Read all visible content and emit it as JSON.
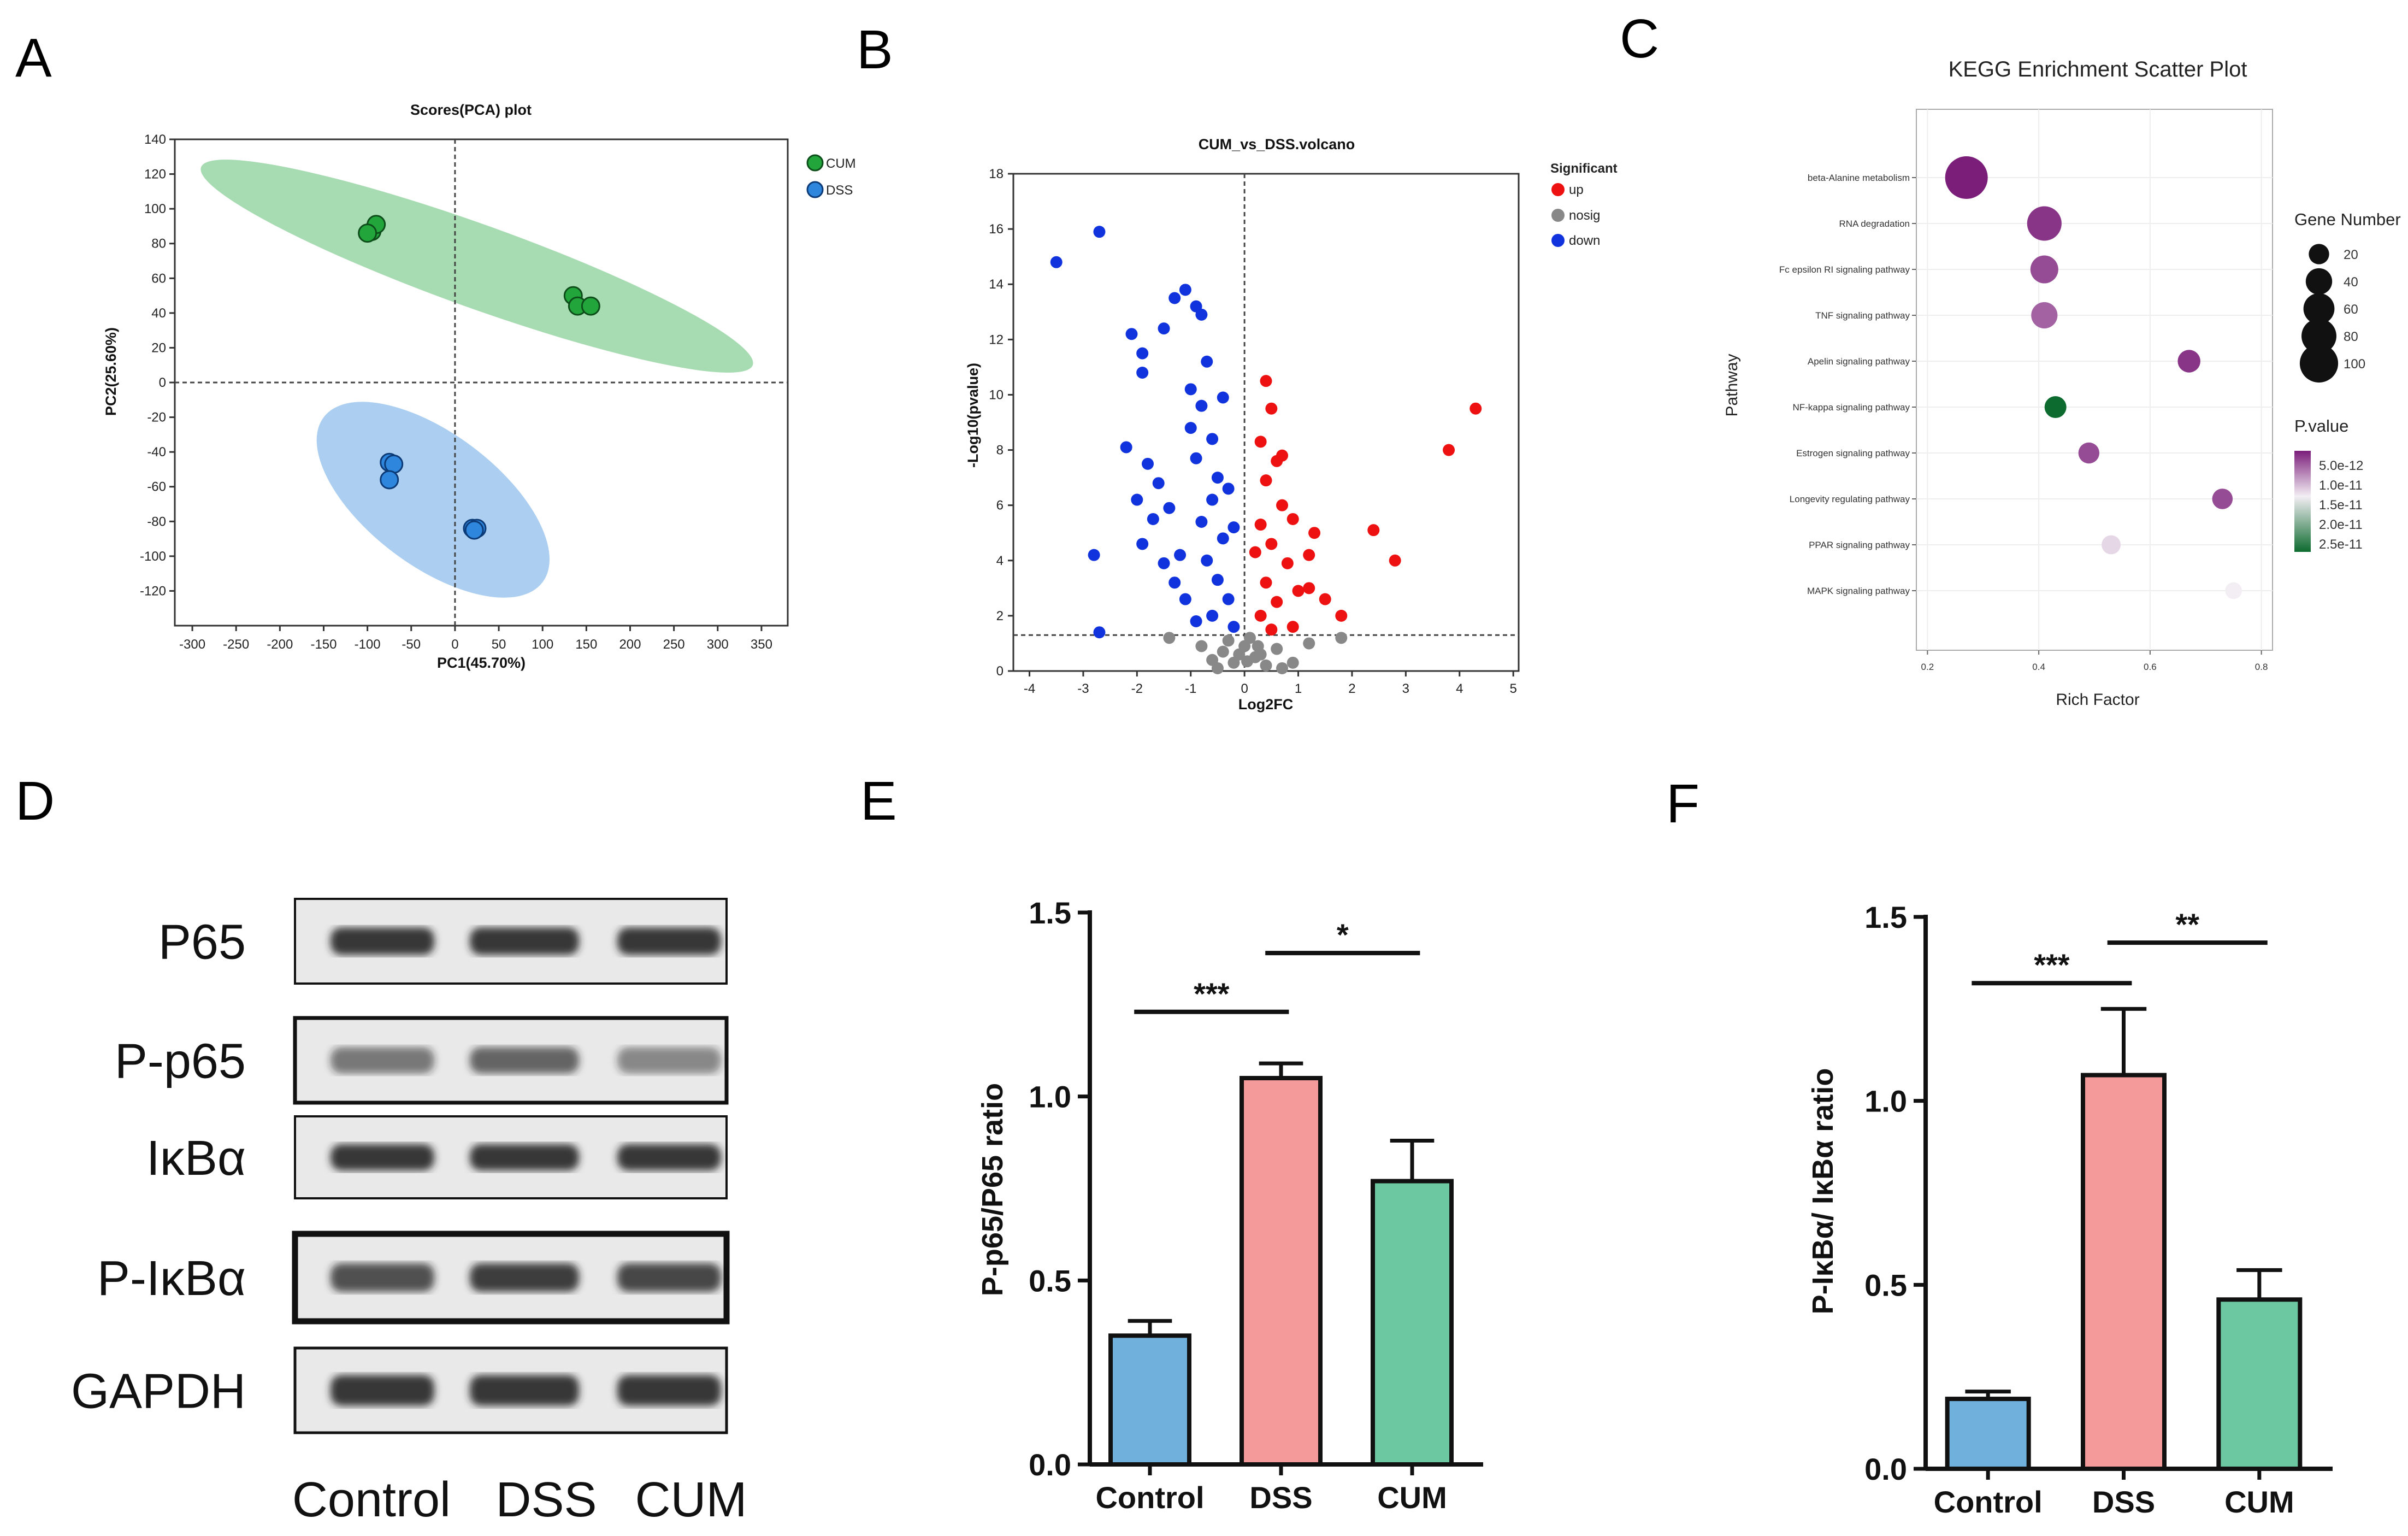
{
  "panels": {
    "A": "A",
    "B": "B",
    "C": "C",
    "D": "D",
    "E": "E",
    "F": "F"
  },
  "chart_data": [
    {
      "id": "A",
      "type": "scatter",
      "title": "Scores(PCA) plot",
      "xlabel": "PC1(45.70%)",
      "ylabel": "PC2(25.60%)",
      "xlim": [
        -320,
        380
      ],
      "ylim": [
        -140,
        140
      ],
      "xticks": [
        -300,
        -250,
        -200,
        -150,
        -100,
        -50,
        0,
        50,
        100,
        150,
        200,
        250,
        300,
        350
      ],
      "yticks": [
        -120,
        -100,
        -80,
        -60,
        -40,
        -20,
        0,
        20,
        40,
        60,
        80,
        100,
        120,
        140
      ],
      "legend": [
        "CUM",
        "DSS"
      ],
      "colors": {
        "CUM": "#22a63b",
        "DSS": "#2f86dd"
      },
      "series": [
        {
          "name": "CUM",
          "points": [
            [
              -95,
              87
            ],
            [
              -90,
              91
            ],
            [
              -100,
              86
            ],
            [
              135,
              50
            ],
            [
              140,
              44
            ],
            [
              155,
              44
            ]
          ]
        },
        {
          "name": "DSS",
          "points": [
            [
              -75,
              -46
            ],
            [
              -70,
              -47
            ],
            [
              -75,
              -56
            ],
            [
              20,
              -84
            ],
            [
              25,
              -84
            ],
            [
              22,
              -85
            ]
          ]
        }
      ],
      "ellipses": [
        {
          "name": "CUM",
          "from": [
            -290,
            124
          ],
          "to": [
            340,
            10
          ],
          "width": 24
        },
        {
          "name": "DSS",
          "from": [
            -150,
            -20
          ],
          "to": [
            100,
            -115
          ],
          "width": 38
        }
      ]
    },
    {
      "id": "B",
      "type": "scatter",
      "title": "CUM_vs_DSS.volcano",
      "xlabel": "Log2FC",
      "ylabel": "-Log10(pvalue)",
      "xlim": [
        -4.3,
        5.1
      ],
      "ylim": [
        0,
        18
      ],
      "xticks": [
        -4,
        -3,
        -2,
        -1,
        0,
        1,
        2,
        3,
        4,
        5
      ],
      "yticks": [
        0,
        2,
        4,
        6,
        8,
        10,
        12,
        14,
        16,
        18
      ],
      "legend_title": "Significant",
      "legend": [
        "up",
        "nosig",
        "down"
      ],
      "colors": {
        "up": "#ee1111",
        "nosig": "#888888",
        "down": "#1133dd"
      },
      "threshold_y": 1.3,
      "series": [
        {
          "name": "down",
          "points": [
            [
              -3.5,
              14.8
            ],
            [
              -2.7,
              15.9
            ],
            [
              -2.8,
              4.2
            ],
            [
              -2.7,
              1.4
            ],
            [
              -2.1,
              12.2
            ],
            [
              -1.9,
              11.5
            ],
            [
              -1.5,
              12.4
            ],
            [
              -1.3,
              13.5
            ],
            [
              -1.1,
              13.8
            ],
            [
              -0.9,
              13.2
            ],
            [
              -0.8,
              12.9
            ],
            [
              -1.9,
              10.8
            ],
            [
              -2.2,
              8.1
            ],
            [
              -1.8,
              7.5
            ],
            [
              -1.6,
              6.8
            ],
            [
              -2.0,
              6.2
            ],
            [
              -1.7,
              5.5
            ],
            [
              -1.9,
              4.6
            ],
            [
              -1.5,
              3.9
            ],
            [
              -1.2,
              4.2
            ],
            [
              -1.3,
              3.2
            ],
            [
              -1.0,
              10.2
            ],
            [
              -0.8,
              9.6
            ],
            [
              -0.7,
              11.2
            ],
            [
              -0.6,
              8.4
            ],
            [
              -0.9,
              7.7
            ],
            [
              -0.5,
              7.0
            ],
            [
              -0.6,
              6.2
            ],
            [
              -0.8,
              5.4
            ],
            [
              -0.4,
              4.8
            ],
            [
              -0.7,
              4.0
            ],
            [
              -0.5,
              3.3
            ],
            [
              -0.3,
              2.6
            ],
            [
              -0.6,
              2.0
            ],
            [
              -0.2,
              1.6
            ],
            [
              -1.1,
              2.6
            ],
            [
              -1.4,
              5.9
            ],
            [
              -1.0,
              8.8
            ],
            [
              -0.4,
              9.9
            ],
            [
              -0.3,
              6.6
            ],
            [
              -0.2,
              5.2
            ],
            [
              -0.9,
              1.8
            ]
          ]
        },
        {
          "name": "up",
          "points": [
            [
              4.3,
              9.5
            ],
            [
              3.8,
              8.0
            ],
            [
              2.4,
              5.1
            ],
            [
              2.8,
              4.0
            ],
            [
              1.3,
              5.0
            ],
            [
              1.2,
              4.2
            ],
            [
              1.2,
              3.0
            ],
            [
              1.5,
              2.6
            ],
            [
              1.8,
              2.0
            ],
            [
              0.4,
              10.5
            ],
            [
              0.5,
              9.5
            ],
            [
              0.3,
              8.3
            ],
            [
              0.6,
              7.6
            ],
            [
              0.4,
              6.9
            ],
            [
              0.7,
              6.0
            ],
            [
              0.3,
              5.3
            ],
            [
              0.5,
              4.6
            ],
            [
              0.8,
              3.9
            ],
            [
              0.4,
              3.2
            ],
            [
              0.6,
              2.5
            ],
            [
              0.3,
              2.0
            ],
            [
              0.9,
              1.6
            ],
            [
              0.5,
              1.5
            ],
            [
              0.2,
              4.3
            ],
            [
              1.0,
              2.9
            ],
            [
              0.7,
              7.8
            ],
            [
              0.9,
              5.5
            ]
          ]
        },
        {
          "name": "nosig",
          "points": [
            [
              -0.6,
              0.4
            ],
            [
              -0.4,
              0.7
            ],
            [
              -0.2,
              0.3
            ],
            [
              0.0,
              0.9
            ],
            [
              0.2,
              0.5
            ],
            [
              0.4,
              0.2
            ],
            [
              0.6,
              0.8
            ],
            [
              -0.3,
              1.1
            ],
            [
              0.1,
              1.2
            ],
            [
              0.3,
              0.6
            ],
            [
              -0.8,
              0.9
            ],
            [
              -1.4,
              1.2
            ],
            [
              0.9,
              0.3
            ],
            [
              1.2,
              1.0
            ],
            [
              1.8,
              1.2
            ],
            [
              -0.5,
              0.1
            ],
            [
              0.7,
              0.1
            ],
            [
              0.05,
              0.35
            ],
            [
              -0.1,
              0.6
            ],
            [
              0.25,
              0.9
            ]
          ]
        }
      ]
    },
    {
      "id": "C",
      "type": "scatter",
      "title": "KEGG Enrichment Scatter Plot",
      "xlabel": "Rich Factor",
      "ylabel": "Pathway",
      "xlim": [
        0.18,
        0.82
      ],
      "xticks": [
        0.2,
        0.4,
        0.6,
        0.8
      ],
      "pathways": [
        "beta-Alanine metabolism",
        "RNA degradation",
        "Fc epsilon RI signaling pathway",
        "TNF signaling pathway",
        "Apelin signaling pathway",
        "NF-kappa signaling pathway",
        "Estrogen signaling pathway",
        "Longevity regulating pathway",
        "PPAR signaling pathway",
        "MAPK signaling pathway"
      ],
      "rich_factor": [
        0.27,
        0.41,
        0.41,
        0.41,
        0.67,
        0.43,
        0.49,
        0.73,
        0.53,
        0.75
      ],
      "gene_number": [
        100,
        60,
        35,
        30,
        20,
        18,
        16,
        15,
        12,
        8
      ],
      "p_value": [
        5e-12,
        6e-12,
        7e-12,
        8e-12,
        6e-12,
        2.5e-11,
        7e-12,
        7e-12,
        1.3e-11,
        1.4e-11
      ],
      "size_legend_title": "Gene Number",
      "size_legend": [
        20,
        40,
        60,
        80,
        100
      ],
      "color_legend_title": "P.value",
      "color_legend": [
        "5.0e-12",
        "1.0e-11",
        "1.5e-11",
        "2.0e-11",
        "2.5e-11"
      ]
    },
    {
      "id": "E",
      "type": "bar",
      "categories": [
        "Control",
        "DSS",
        "CUM"
      ],
      "values": [
        0.35,
        1.05,
        0.77
      ],
      "errors": [
        0.04,
        0.04,
        0.11
      ],
      "colors": [
        "#6fb1dc",
        "#f59a9a",
        "#6cc8a1"
      ],
      "ylabel": "P-p65/P65 ratio",
      "ylim": [
        0,
        1.5
      ],
      "yticks": [
        "0.0",
        "0.5",
        "1.0",
        "1.5"
      ],
      "significance": [
        {
          "from": 0,
          "to": 1,
          "label": "***",
          "y": 1.23
        },
        {
          "from": 1,
          "to": 2,
          "label": "*",
          "y": 1.39
        }
      ]
    },
    {
      "id": "F",
      "type": "bar",
      "categories": [
        "Control",
        "DSS",
        "CUM"
      ],
      "values": [
        0.19,
        1.07,
        0.46
      ],
      "errors": [
        0.02,
        0.18,
        0.08
      ],
      "colors": [
        "#6fb1dc",
        "#f59a9a",
        "#6cc8a1"
      ],
      "ylabel": "P-IκBα/ IκBα ratio",
      "ylim": [
        0,
        1.5
      ],
      "yticks": [
        "0.0",
        "0.5",
        "1.0",
        "1.5"
      ],
      "significance": [
        {
          "from": 0,
          "to": 1,
          "label": "***",
          "y": 1.32
        },
        {
          "from": 1,
          "to": 2,
          "label": "**",
          "y": 1.43
        }
      ]
    }
  ],
  "western_blot": {
    "labels": [
      "P65",
      "P-p65",
      "IκBα",
      "P-IκBα",
      "GAPDH"
    ],
    "lanes": [
      "Control",
      "DSS",
      "CUM"
    ]
  }
}
